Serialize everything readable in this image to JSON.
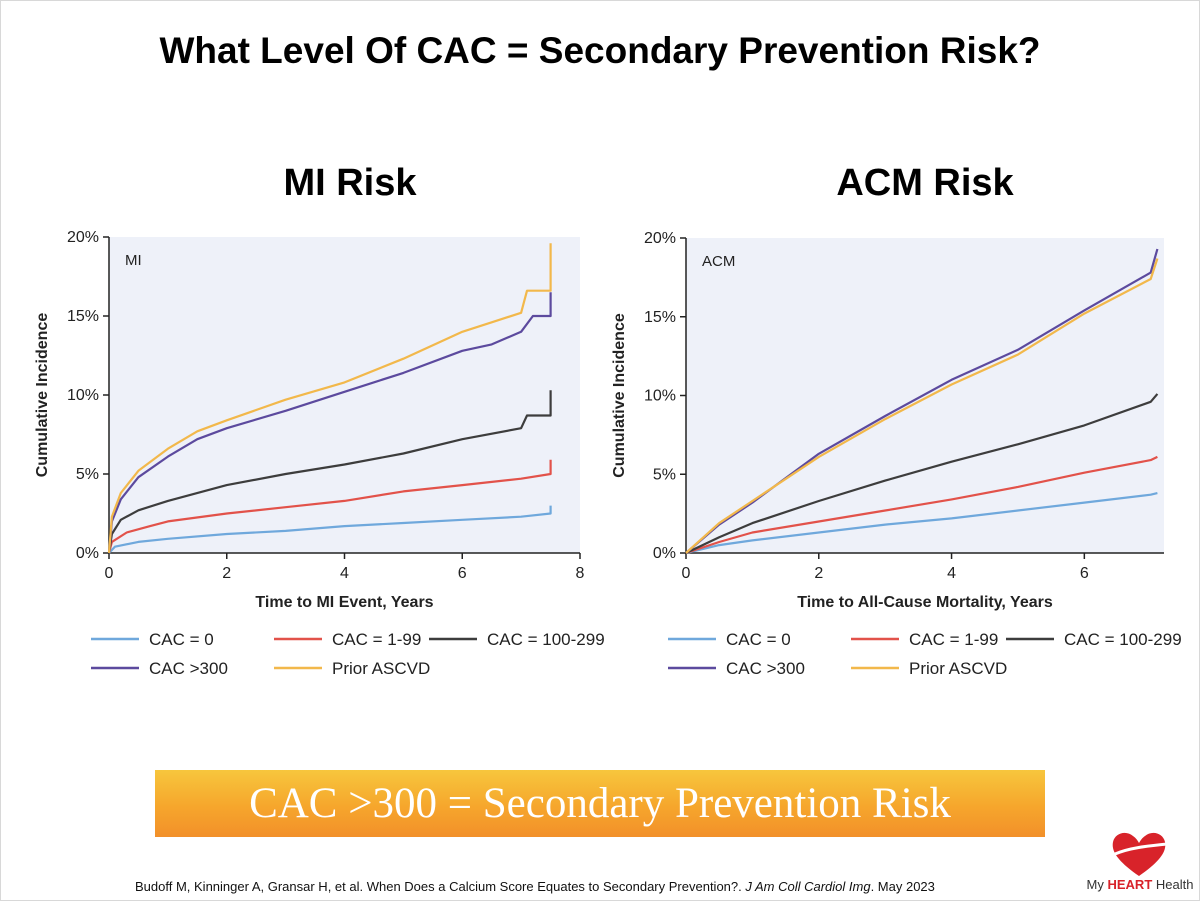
{
  "slide": {
    "title": "What Level Of CAC = Secondary Prevention Risk?",
    "banner": "CAC >300 = Secondary Prevention Risk",
    "citation": {
      "main": "Budoff M, Kinninger A, Gransar H, et al. When Does a Calcium Score Equates to Secondary Prevention?. ",
      "journal": "J Am Coll Cardiol Img",
      "tail": ". May 2023"
    },
    "logo": {
      "prefix": "My ",
      "brand": "HEART",
      "suffix": " Health",
      "color": "#d8232a"
    }
  },
  "chart_data": [
    {
      "type": "line",
      "heading": "MI Risk",
      "tag": "MI",
      "xlabel": "Time to MI Event, Years",
      "ylabel": "Cumulative Incidence",
      "xlim": [
        0,
        8
      ],
      "ylim": [
        0,
        20
      ],
      "xticks": [
        0,
        2,
        4,
        6,
        8
      ],
      "yticks": [
        0,
        5,
        10,
        15,
        20
      ],
      "ytick_labels": [
        "0%",
        "5%",
        "10%",
        "15%",
        "20%"
      ],
      "grid": false,
      "legend_position": "bottom",
      "series": [
        {
          "name": "CAC = 0",
          "color": "#6fa8dc",
          "points": [
            [
              0,
              0
            ],
            [
              0.1,
              0.4
            ],
            [
              0.5,
              0.7
            ],
            [
              1,
              0.9
            ],
            [
              2,
              1.2
            ],
            [
              3,
              1.4
            ],
            [
              4,
              1.7
            ],
            [
              5,
              1.9
            ],
            [
              6,
              2.1
            ],
            [
              7,
              2.3
            ],
            [
              7.5,
              2.5
            ],
            [
              7.5,
              3.0
            ]
          ]
        },
        {
          "name": "CAC = 1-99",
          "color": "#e2524a",
          "points": [
            [
              0,
              0
            ],
            [
              0.05,
              0.7
            ],
            [
              0.3,
              1.3
            ],
            [
              0.7,
              1.7
            ],
            [
              1,
              2.0
            ],
            [
              2,
              2.5
            ],
            [
              3,
              2.9
            ],
            [
              4,
              3.3
            ],
            [
              5,
              3.9
            ],
            [
              6,
              4.3
            ],
            [
              7,
              4.7
            ],
            [
              7.5,
              5.0
            ],
            [
              7.5,
              5.9
            ]
          ]
        },
        {
          "name": "CAC = 100-299",
          "color": "#3d3d3d",
          "points": [
            [
              0,
              0
            ],
            [
              0.05,
              1.2
            ],
            [
              0.2,
              2.1
            ],
            [
              0.5,
              2.7
            ],
            [
              1,
              3.3
            ],
            [
              2,
              4.3
            ],
            [
              3,
              5.0
            ],
            [
              4,
              5.6
            ],
            [
              5,
              6.3
            ],
            [
              6,
              7.2
            ],
            [
              7,
              7.9
            ],
            [
              7.1,
              8.7
            ],
            [
              7.5,
              8.7
            ],
            [
              7.5,
              10.3
            ]
          ]
        },
        {
          "name": "CAC >300",
          "color": "#5c4a9e",
          "points": [
            [
              0,
              0
            ],
            [
              0.05,
              2.0
            ],
            [
              0.2,
              3.4
            ],
            [
              0.5,
              4.8
            ],
            [
              1,
              6.1
            ],
            [
              1.5,
              7.2
            ],
            [
              2,
              7.9
            ],
            [
              3,
              9.0
            ],
            [
              4,
              10.2
            ],
            [
              5,
              11.4
            ],
            [
              6,
              12.8
            ],
            [
              6.5,
              13.2
            ],
            [
              7,
              14.0
            ],
            [
              7.2,
              15.0
            ],
            [
              7.5,
              15.0
            ],
            [
              7.5,
              16.5
            ]
          ]
        },
        {
          "name": "Prior ASCVD",
          "color": "#f2b84b",
          "points": [
            [
              0,
              0
            ],
            [
              0.05,
              2.3
            ],
            [
              0.2,
              3.8
            ],
            [
              0.5,
              5.2
            ],
            [
              1,
              6.6
            ],
            [
              1.5,
              7.7
            ],
            [
              2,
              8.4
            ],
            [
              3,
              9.7
            ],
            [
              4,
              10.8
            ],
            [
              5,
              12.3
            ],
            [
              6,
              14.0
            ],
            [
              6.5,
              14.6
            ],
            [
              7,
              15.2
            ],
            [
              7.1,
              16.6
            ],
            [
              7.5,
              16.6
            ],
            [
              7.5,
              19.6
            ]
          ]
        }
      ]
    },
    {
      "type": "line",
      "heading": "ACM Risk",
      "tag": "ACM",
      "xlabel": "Time to All-Cause Mortality, Years",
      "ylabel": "Cumulative Incidence",
      "xlim": [
        0,
        7.2
      ],
      "ylim": [
        0,
        20
      ],
      "xticks": [
        0,
        2,
        4,
        6
      ],
      "yticks": [
        0,
        5,
        10,
        15,
        20
      ],
      "ytick_labels": [
        "0%",
        "5%",
        "10%",
        "15%",
        "20%"
      ],
      "grid": false,
      "legend_position": "bottom",
      "series": [
        {
          "name": "CAC = 0",
          "color": "#6fa8dc",
          "points": [
            [
              0,
              0
            ],
            [
              0.5,
              0.5
            ],
            [
              1,
              0.8
            ],
            [
              2,
              1.3
            ],
            [
              3,
              1.8
            ],
            [
              4,
              2.2
            ],
            [
              5,
              2.7
            ],
            [
              6,
              3.2
            ],
            [
              7,
              3.7
            ],
            [
              7.1,
              3.8
            ]
          ]
        },
        {
          "name": "CAC = 1-99",
          "color": "#e2524a",
          "points": [
            [
              0,
              0
            ],
            [
              0.5,
              0.7
            ],
            [
              1,
              1.3
            ],
            [
              2,
              2.0
            ],
            [
              3,
              2.7
            ],
            [
              4,
              3.4
            ],
            [
              5,
              4.2
            ],
            [
              6,
              5.1
            ],
            [
              7,
              5.9
            ],
            [
              7.1,
              6.1
            ]
          ]
        },
        {
          "name": "CAC = 100-299",
          "color": "#3d3d3d",
          "points": [
            [
              0,
              0
            ],
            [
              0.5,
              1.0
            ],
            [
              1,
              1.9
            ],
            [
              2,
              3.3
            ],
            [
              3,
              4.6
            ],
            [
              4,
              5.8
            ],
            [
              5,
              6.9
            ],
            [
              6,
              8.1
            ],
            [
              7,
              9.6
            ],
            [
              7.1,
              10.1
            ]
          ]
        },
        {
          "name": "CAC >300",
          "color": "#5c4a9e",
          "points": [
            [
              0,
              0
            ],
            [
              0.5,
              1.8
            ],
            [
              1,
              3.2
            ],
            [
              2,
              6.3
            ],
            [
              3,
              8.7
            ],
            [
              4,
              11.0
            ],
            [
              5,
              12.9
            ],
            [
              6,
              15.4
            ],
            [
              7,
              17.8
            ],
            [
              7.1,
              19.3
            ]
          ]
        },
        {
          "name": "Prior ASCVD",
          "color": "#f2b84b",
          "points": [
            [
              0,
              0
            ],
            [
              0.5,
              1.9
            ],
            [
              1,
              3.3
            ],
            [
              2,
              6.1
            ],
            [
              3,
              8.5
            ],
            [
              4,
              10.7
            ],
            [
              5,
              12.6
            ],
            [
              6,
              15.2
            ],
            [
              7,
              17.4
            ],
            [
              7.1,
              18.7
            ]
          ]
        }
      ]
    }
  ]
}
